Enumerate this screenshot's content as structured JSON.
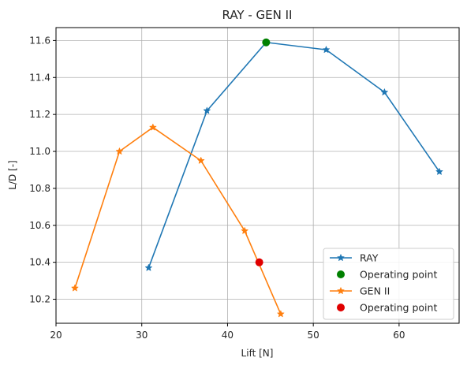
{
  "chart_data": {
    "type": "line",
    "title": "RAY - GEN II",
    "xlabel": "Lift [N]",
    "ylabel": "L/D [-]",
    "xlim": [
      20,
      67
    ],
    "ylim": [
      10.07,
      11.67
    ],
    "xticks": [
      20,
      30,
      40,
      50,
      60
    ],
    "yticks": [
      10.2,
      10.4,
      10.6,
      10.8,
      11.0,
      11.2,
      11.4,
      11.6
    ],
    "xtick_labels": [
      "20",
      "30",
      "40",
      "50",
      "60"
    ],
    "ytick_labels": [
      "10.2",
      "10.4",
      "10.6",
      "10.8",
      "11.0",
      "11.2",
      "11.4",
      "11.6"
    ],
    "grid": true,
    "legend_position": "bottom-right",
    "series": [
      {
        "name": "RAY",
        "color": "#1f77b4",
        "marker": "star",
        "x": [
          30.8,
          37.6,
          44.5,
          51.5,
          58.3,
          64.7
        ],
        "y": [
          10.37,
          11.22,
          11.59,
          11.55,
          11.32,
          10.89
        ]
      },
      {
        "name": "GEN II",
        "color": "#ff7f0e",
        "marker": "star",
        "x": [
          22.2,
          27.4,
          31.3,
          36.9,
          42.0,
          46.2
        ],
        "y": [
          10.26,
          11.0,
          11.13,
          10.95,
          10.57,
          10.12
        ]
      }
    ],
    "operating_points": [
      {
        "label": "Operating point",
        "color": "#008000",
        "x": 44.5,
        "y": 11.59
      },
      {
        "label": "Operating point",
        "color": "#e00000",
        "x": 43.7,
        "y": 10.4
      }
    ],
    "legend": [
      {
        "label": "RAY",
        "kind": "line-star",
        "color": "#1f77b4"
      },
      {
        "label": "Operating point",
        "kind": "dot",
        "color": "#008000"
      },
      {
        "label": "GEN II",
        "kind": "line-star",
        "color": "#ff7f0e"
      },
      {
        "label": "Operating point",
        "kind": "dot",
        "color": "#e00000"
      }
    ]
  }
}
